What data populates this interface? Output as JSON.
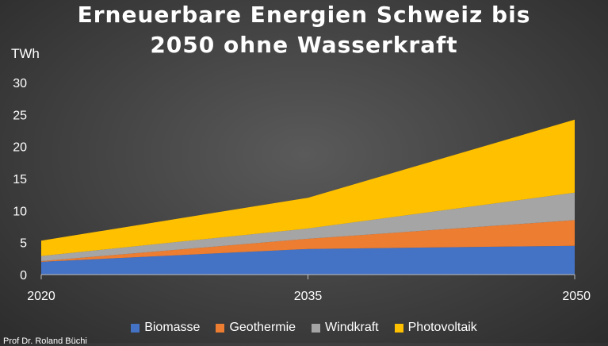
{
  "title_line1": "Erneuerbare Energien Schweiz bis",
  "title_line2": "2050 ohne Wasserkraft",
  "credit": "Prof Dr. Roland Büchi",
  "chart_data": {
    "type": "area",
    "stacked": true,
    "title": "Erneuerbare Energien Schweiz bis 2050 ohne Wasserkraft",
    "ylabel": "TWh",
    "xlabel": "",
    "x": [
      "2020",
      "2035",
      "2050"
    ],
    "ylim": [
      0,
      30
    ],
    "yticks": [
      0,
      5,
      10,
      15,
      20,
      25,
      30
    ],
    "grid": false,
    "legend_position": "bottom",
    "series": [
      {
        "name": "Biomasse",
        "color": "#4472c4",
        "values": [
          2.0,
          4.0,
          4.5
        ]
      },
      {
        "name": "Geothermie",
        "color": "#ed7d31",
        "values": [
          0.1,
          1.6,
          4.0
        ]
      },
      {
        "name": "Windkraft",
        "color": "#a5a5a5",
        "values": [
          0.8,
          1.6,
          4.3
        ]
      },
      {
        "name": "Photovoltaik",
        "color": "#ffc000",
        "values": [
          2.4,
          4.8,
          11.4
        ]
      }
    ]
  }
}
